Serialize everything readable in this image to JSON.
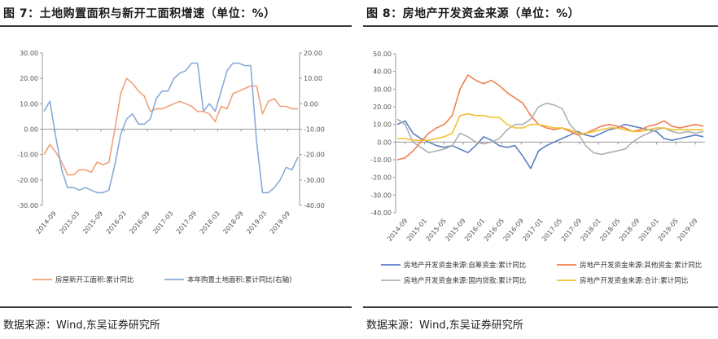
{
  "left": {
    "title": "图 7：土地购置面积与新开工面积增速（单位：%）",
    "source": "数据来源：Wind,东吴证券研究所",
    "chart_data": {
      "type": "line",
      "title": "",
      "x_labels": [
        "2014-09",
        "2015-03",
        "2015-09",
        "2016-03",
        "2016-09",
        "2017-03",
        "2017-09",
        "2018-03",
        "2018-09",
        "2019-03",
        "2019-09"
      ],
      "y_left": {
        "min": -30,
        "max": 30,
        "ticks": [
          "-30.00",
          "-20.00",
          "-10.00",
          "0.00",
          "10.00",
          "20.00",
          "30.00"
        ]
      },
      "y_right": {
        "min": -40,
        "max": 20,
        "ticks": [
          "-40.00",
          "-30.00",
          "-20.00",
          "-10.00",
          "0.00",
          "10.00",
          "20.00"
        ]
      },
      "grid": false,
      "legend_position": "bottom",
      "series": [
        {
          "name": "房屋新开工面积:累计同比",
          "axis": "left",
          "color": "#f0a27a",
          "values": [
            -10,
            -6,
            -9,
            -13,
            -18,
            -18,
            -16,
            -16,
            -17,
            -13,
            -14,
            -13,
            0,
            14,
            20,
            18,
            15,
            13,
            7,
            8,
            8,
            9,
            10,
            11,
            10,
            9,
            7,
            7,
            6,
            3,
            9,
            8,
            14,
            15,
            16,
            17,
            17,
            6,
            11,
            12,
            9,
            9,
            8,
            8
          ]
        },
        {
          "name": "本年购置土地面积:累计同比(右轴)",
          "axis": "right",
          "color": "#8aaad8",
          "values": [
            -3,
            1,
            -13,
            -26,
            -33,
            -33,
            -34,
            -33,
            -34,
            -35,
            -35,
            -34,
            -24,
            -12,
            -6,
            -4,
            -8,
            -8,
            -6,
            2,
            5,
            5,
            10,
            12,
            13,
            16,
            16,
            -3,
            0,
            -3,
            5,
            13,
            16,
            16,
            15,
            15,
            -15,
            -35,
            -35,
            -33,
            -30,
            -25,
            -26,
            -21
          ]
        }
      ]
    }
  },
  "right": {
    "title": "图 8：房地产开发资金来源（单位：%）",
    "source": "数据来源：Wind,东吴证券研究所",
    "chart_data": {
      "type": "line",
      "title": "",
      "x_labels": [
        "2014-09",
        "2015-01",
        "2015-05",
        "2015-09",
        "2016-01",
        "2016-05",
        "2016-09",
        "2017-01",
        "2017-05",
        "2017-09",
        "2018-01",
        "2018-05",
        "2018-09",
        "2019-01",
        "2019-05",
        "2019-09"
      ],
      "y_left": {
        "min": -40,
        "max": 50,
        "ticks": [
          "-40.00",
          "-30.00",
          "-20.00",
          "-10.00",
          "0.00",
          "10.00",
          "20.00",
          "30.00",
          "40.00",
          "50.00"
        ]
      },
      "grid": false,
      "legend_position": "bottom",
      "series": [
        {
          "name": "房地产开发资金来源:自筹资金:累计同比",
          "color": "#5b7fc4",
          "values": [
            10,
            12,
            5,
            2,
            0,
            -2,
            -3,
            -2,
            -4,
            -6,
            -2,
            3,
            1,
            -2,
            -3,
            -2,
            -8,
            -15,
            -5,
            -2,
            0,
            2,
            4,
            6,
            4,
            3,
            5,
            7,
            8,
            10,
            9,
            8,
            7,
            6,
            2,
            1,
            2,
            3,
            4,
            3
          ]
        },
        {
          "name": "房地产开发资金来源:其他资金:累计同比",
          "color": "#f08050",
          "values": [
            -10,
            -9,
            -5,
            0,
            5,
            8,
            10,
            15,
            30,
            38,
            35,
            33,
            35,
            32,
            28,
            25,
            22,
            15,
            10,
            8,
            7,
            8,
            6,
            4,
            5,
            7,
            9,
            10,
            9,
            8,
            6,
            7,
            9,
            10,
            12,
            9,
            8,
            9,
            10,
            9
          ]
        },
        {
          "name": "房地产开发资金来源:国内贷款:累计同比",
          "color": "#b0b0b0",
          "values": [
            13,
            10,
            0,
            -3,
            -6,
            -5,
            -4,
            -2,
            5,
            3,
            0,
            -1,
            0,
            2,
            7,
            10,
            10,
            13,
            20,
            22,
            21,
            19,
            10,
            5,
            -2,
            -6,
            -7,
            -6,
            -5,
            -4,
            0,
            3,
            5,
            7,
            8,
            6,
            5,
            6,
            5,
            6
          ]
        },
        {
          "name": "房地产开发资金来源:合计:累计同比",
          "color": "#f2c12e",
          "values": [
            2,
            2,
            1,
            1,
            1,
            2,
            3,
            5,
            15,
            16,
            15,
            15,
            14,
            14,
            10,
            8,
            8,
            10,
            10,
            9,
            8,
            8,
            7,
            5,
            5,
            6,
            7,
            8,
            8,
            7,
            6,
            6,
            7,
            8,
            8,
            7,
            7,
            7,
            7,
            7
          ]
        }
      ]
    }
  }
}
